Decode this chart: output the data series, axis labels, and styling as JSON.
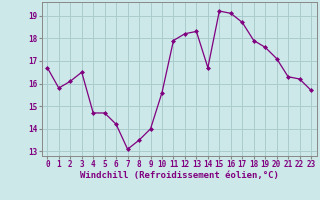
{
  "hours": [
    0,
    1,
    2,
    3,
    4,
    5,
    6,
    7,
    8,
    9,
    10,
    11,
    12,
    13,
    14,
    15,
    16,
    17,
    18,
    19,
    20,
    21,
    22,
    23
  ],
  "values": [
    16.7,
    15.8,
    16.1,
    16.5,
    14.7,
    14.7,
    14.2,
    13.1,
    13.5,
    14.0,
    15.6,
    17.9,
    18.2,
    18.3,
    16.7,
    19.2,
    19.1,
    18.7,
    17.9,
    17.6,
    17.1,
    16.3,
    16.2,
    15.7
  ],
  "line_color": "#800080",
  "marker": "D",
  "marker_size": 2,
  "bg_color": "#cce8e8",
  "grid_color": "#aacccc",
  "xlabel": "Windchill (Refroidissement éolien,°C)",
  "ylim": [
    12.8,
    19.6
  ],
  "xlim": [
    -0.5,
    23.5
  ],
  "yticks": [
    13,
    14,
    15,
    16,
    17,
    18,
    19
  ],
  "xticks": [
    0,
    1,
    2,
    3,
    4,
    5,
    6,
    7,
    8,
    9,
    10,
    11,
    12,
    13,
    14,
    15,
    16,
    17,
    18,
    19,
    20,
    21,
    22,
    23
  ],
  "tick_fontsize": 5.5,
  "xlabel_fontsize": 6.5,
  "tick_color": "#800080"
}
